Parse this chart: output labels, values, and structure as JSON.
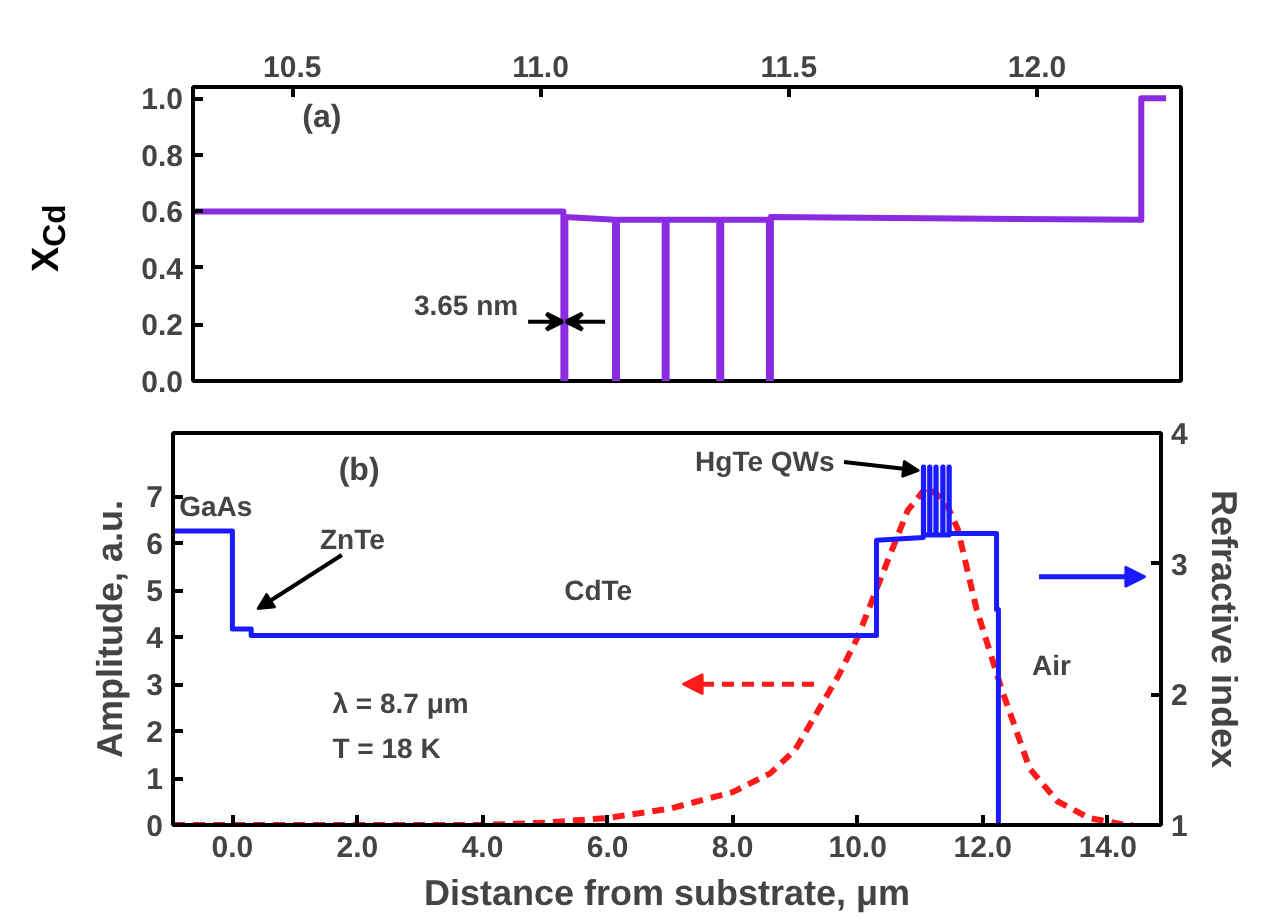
{
  "chart_data": [
    {
      "type": "line",
      "ylabel": "X$_{Cd}$",
      "xlim": [
        10.3,
        12.29
      ],
      "xticks": [
        {
          "value": 10.5,
          "label": "10.5"
        },
        {
          "value": 11,
          "label": "11.0"
        },
        {
          "value": 11.5,
          "label": "11.5"
        },
        {
          "value": 12,
          "label": "12.0"
        }
      ],
      "ylim": [
        0,
        1.04
      ],
      "yticks": [
        {
          "value": 0,
          "label": "0.0"
        },
        {
          "value": 0.2,
          "label": "0.2"
        },
        {
          "value": 0.4,
          "label": "0.4"
        },
        {
          "value": 0.6,
          "label": "0.6"
        },
        {
          "value": 0.8,
          "label": "0.8"
        },
        {
          "value": 1,
          "label": "1.0"
        }
      ],
      "marker": "none",
      "series": [
        {
          "color": "#8a2be2",
          "x": [
            10.3,
            11.046,
            11.046,
            11.05,
            11.05,
            11.15,
            11.15,
            11.154,
            11.154,
            11.25,
            11.25,
            11.254,
            11.254,
            11.36,
            11.36,
            11.364,
            11.364,
            11.46,
            11.46,
            11.464,
            11.464,
            12.21,
            12.21,
            12.26
          ],
          "values": [
            0.6,
            0.6,
            0,
            0,
            0.58,
            0.57,
            0,
            0,
            0.57,
            0.57,
            0,
            0,
            0.57,
            0.57,
            0,
            0,
            0.57,
            0.57,
            0,
            0,
            0.58,
            0.57,
            1.0,
            1.0
          ]
        }
      ],
      "annotations": [
        "(a)",
        "3.65 nm"
      ]
    },
    {
      "type": "line",
      "xlabel": "Distance from substrate, μm",
      "ylabel": "Amplitude, a.u.",
      "y2label": "Refractive index",
      "xlim": [
        -0.95,
        14.85
      ],
      "xticks": [
        {
          "value": 0,
          "label": "0.0"
        },
        {
          "value": 2,
          "label": "2.0"
        },
        {
          "value": 4,
          "label": "4.0"
        },
        {
          "value": 6,
          "label": "6.0"
        },
        {
          "value": 8,
          "label": "8.0"
        },
        {
          "value": 10,
          "label": "10.0"
        },
        {
          "value": 12,
          "label": "12.0"
        },
        {
          "value": 14,
          "label": "14.0"
        }
      ],
      "ylim": [
        0,
        8.35
      ],
      "yticks": [
        0,
        1,
        2,
        3,
        4,
        5,
        6,
        7
      ],
      "y2lim": [
        1,
        4
      ],
      "y2ticks": [
        1,
        2,
        3,
        4
      ],
      "marker": "none",
      "series": [
        {
          "color": "#ff1a1a",
          "line_style": "dashed",
          "x": [
            -0.95,
            4,
            5,
            6,
            7,
            8,
            8.6,
            9,
            9.7,
            10,
            10.5,
            10.8,
            11.1,
            11.4,
            11.6,
            11.9,
            12.3,
            12.75,
            13.2,
            13.7,
            14.2,
            14.4
          ],
          "values": [
            0,
            0,
            0.05,
            0.15,
            0.35,
            0.7,
            1.1,
            1.6,
            3.2,
            4.0,
            5.7,
            6.7,
            7.2,
            6.9,
            6.3,
            4.6,
            2.9,
            1.2,
            0.5,
            0.15,
            0.02,
            0
          ]
        },
        {
          "color": "#1a1aff",
          "axis": "y2",
          "x": [
            -0.95,
            0,
            0,
            0.3,
            0.3,
            10.3,
            10.3,
            11.05,
            11.05,
            11.054,
            11.054,
            11.15,
            11.15,
            11.154,
            11.154,
            11.25,
            11.25,
            11.254,
            11.254,
            11.36,
            11.36,
            11.364,
            11.364,
            11.46,
            11.46,
            11.464,
            11.464,
            12.22,
            12.22,
            12.25,
            12.25
          ],
          "values": [
            3.25,
            3.25,
            2.5,
            2.5,
            2.45,
            2.45,
            3.18,
            3.2,
            3.74,
            3.74,
            3.22,
            3.22,
            3.74,
            3.74,
            3.22,
            3.22,
            3.74,
            3.74,
            3.22,
            3.22,
            3.74,
            3.74,
            3.22,
            3.22,
            3.74,
            3.74,
            3.23,
            3.23,
            2.65,
            2.65,
            1
          ]
        }
      ],
      "annotations": [
        "(b)",
        "GaAs",
        "ZnTe",
        "CdTe",
        {
          "text": "HgTe QWs",
          "x": 10.98,
          "y": 7.55
        },
        "Air",
        "λ = 8.7 μm",
        "T = 18 K"
      ]
    }
  ]
}
